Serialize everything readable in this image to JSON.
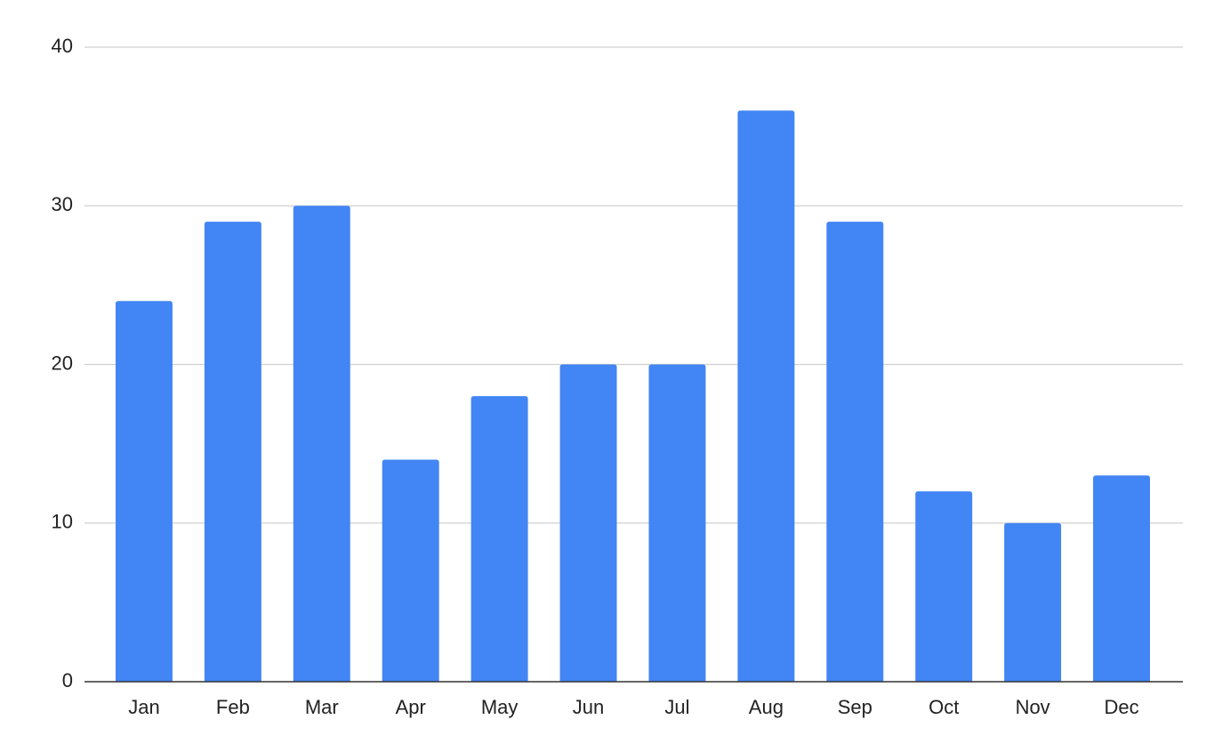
{
  "chart_data": {
    "type": "bar",
    "categories": [
      "Jan",
      "Feb",
      "Mar",
      "Apr",
      "May",
      "Jun",
      "Jul",
      "Aug",
      "Sep",
      "Oct",
      "Nov",
      "Dec"
    ],
    "values": [
      24,
      29,
      30,
      14,
      18,
      20,
      20,
      36,
      29,
      12,
      10,
      13
    ],
    "color": "#4285f4",
    "ylim": [
      0,
      40
    ],
    "yticks": [
      0,
      10,
      20,
      30,
      40
    ],
    "grid": true
  }
}
